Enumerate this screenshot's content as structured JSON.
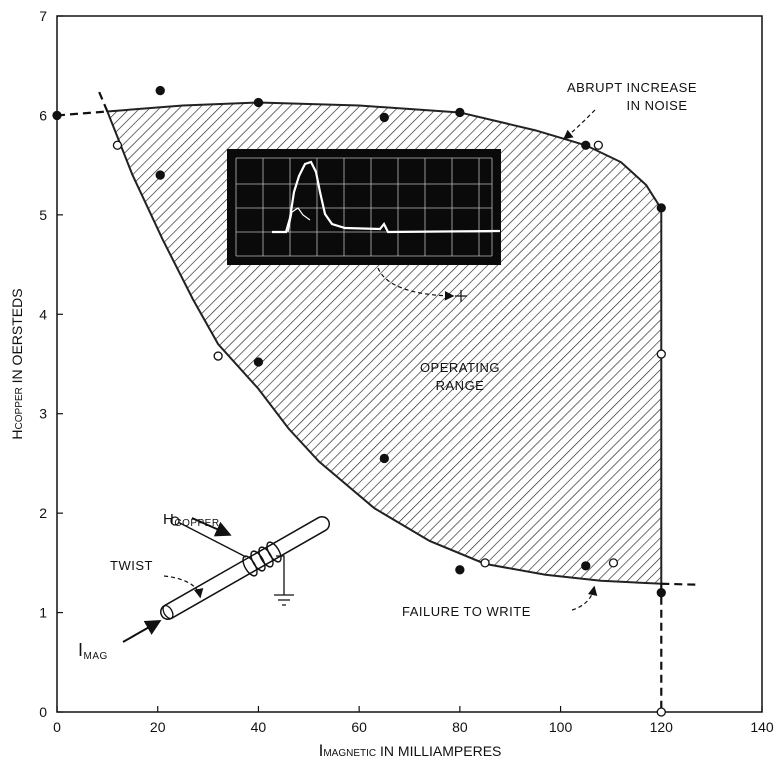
{
  "chart_data": {
    "type": "scatter",
    "x_label": {
      "main": "I",
      "sub": "MAGNETIC",
      "rest": "IN MILLIAMPERES"
    },
    "y_label": {
      "main": "H",
      "sub": "COPPER",
      "rest": "IN OERSTEDS"
    },
    "xlim": [
      0,
      140
    ],
    "ylim": [
      0,
      7
    ],
    "xticks": [
      0,
      20,
      40,
      60,
      80,
      100,
      120,
      140
    ],
    "yticks": [
      0,
      1,
      2,
      3,
      4,
      5,
      6,
      7
    ],
    "series": [
      {
        "marker": "filled",
        "color": "#111111",
        "x": [
          0,
          20.5,
          20.5,
          40,
          40,
          65,
          65,
          80,
          80,
          105,
          105,
          120,
          120
        ],
        "y": [
          6.0,
          6.25,
          5.4,
          6.13,
          3.52,
          5.98,
          2.55,
          6.03,
          1.43,
          5.7,
          1.47,
          5.07,
          1.2
        ]
      },
      {
        "marker": "open",
        "color": "#111111",
        "x": [
          12,
          32,
          85,
          107.5,
          110.5,
          120,
          120
        ],
        "y": [
          5.7,
          3.58,
          1.5,
          5.7,
          1.5,
          3.6,
          0
        ]
      }
    ],
    "region": {
      "color": "#222222",
      "x": [
        10,
        25,
        40,
        60,
        80,
        95,
        105,
        112,
        117,
        120,
        120,
        108,
        97,
        85,
        74,
        63,
        52,
        46,
        40,
        32,
        27,
        21,
        15,
        10
      ],
      "y": [
        6.04,
        6.1,
        6.13,
        6.1,
        6.03,
        5.85,
        5.7,
        5.53,
        5.3,
        5.06,
        1.29,
        1.32,
        1.38,
        1.49,
        1.72,
        2.05,
        2.52,
        2.85,
        3.25,
        3.7,
        4.15,
        4.75,
        5.4,
        6.04
      ]
    },
    "dashed_lines": [
      {
        "x": [
          0,
          10
        ],
        "y": [
          6.0,
          6.04
        ]
      },
      {
        "x": [
          10,
          8
        ],
        "y": [
          6.04,
          6.28
        ]
      },
      {
        "x": [
          120,
          127.5
        ],
        "y": [
          1.29,
          1.28
        ]
      },
      {
        "x": [
          120,
          120
        ],
        "y": [
          1.29,
          0
        ]
      }
    ],
    "annotations": [
      {
        "lines": [
          "ABRUPT INCREASE",
          "IN NOISE"
        ]
      },
      {
        "lines": [
          "OPERATING",
          "RANGE"
        ]
      },
      {
        "lines": [
          "FAILURE TO WRITE"
        ]
      }
    ],
    "inset_labels": {
      "h_copper": {
        "main": "H",
        "sub": "COPPER"
      },
      "twist": "TWIST",
      "i_mag": {
        "main": "I",
        "sub": "MAG"
      }
    }
  }
}
